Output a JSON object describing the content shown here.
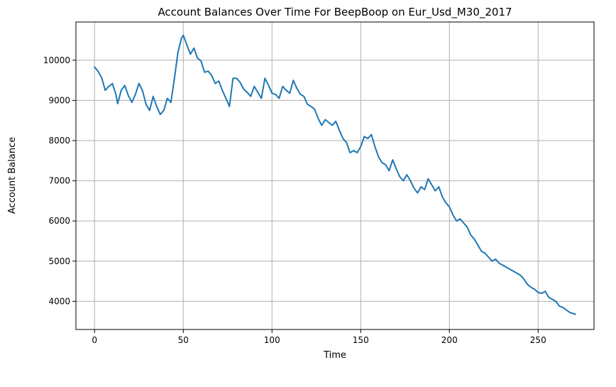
{
  "chart_data": {
    "type": "line",
    "title": "Account Balances Over Time For BeepBoop on Eur_Usd_M30_2017",
    "xlabel": "Time",
    "ylabel": "Account Balance",
    "xlim": [
      -10.5,
      281.5
    ],
    "ylim": [
      3300,
      10950
    ],
    "grid": true,
    "xticks": [
      0,
      50,
      100,
      150,
      200,
      250
    ],
    "yticks": [
      4000,
      5000,
      6000,
      7000,
      8000,
      9000,
      10000
    ],
    "series": [
      {
        "color": "#1f77b4",
        "x": [
          0,
          2,
          4,
          6,
          8,
          10,
          12,
          13,
          15,
          17,
          19,
          21,
          23,
          25,
          27,
          29,
          31,
          33,
          35,
          37,
          39,
          41,
          43,
          45,
          47,
          49,
          50,
          52,
          54,
          56,
          58,
          60,
          62,
          64,
          66,
          68,
          70,
          72,
          74,
          76,
          78,
          80,
          82,
          84,
          86,
          88,
          90,
          92,
          94,
          96,
          98,
          100,
          102,
          104,
          106,
          108,
          110,
          112,
          114,
          116,
          118,
          120,
          122,
          124,
          126,
          128,
          130,
          132,
          134,
          136,
          138,
          140,
          142,
          144,
          146,
          148,
          150,
          152,
          154,
          156,
          158,
          160,
          162,
          164,
          166,
          168,
          170,
          172,
          174,
          176,
          178,
          180,
          182,
          184,
          186,
          188,
          190,
          192,
          194,
          196,
          198,
          200,
          202,
          204,
          206,
          208,
          210,
          212,
          214,
          216,
          218,
          220,
          222,
          224,
          226,
          228,
          230,
          232,
          234,
          236,
          238,
          240,
          242,
          244,
          246,
          248,
          250,
          252,
          254,
          256,
          258,
          260,
          262,
          264,
          266,
          268,
          271
        ],
        "values": [
          9830,
          9720,
          9560,
          9250,
          9350,
          9420,
          9150,
          8920,
          9250,
          9370,
          9120,
          8950,
          9150,
          9420,
          9240,
          8900,
          8750,
          9100,
          8850,
          8650,
          8750,
          9050,
          8950,
          9550,
          10200,
          10550,
          10620,
          10380,
          10150,
          10300,
          10050,
          9980,
          9700,
          9730,
          9620,
          9420,
          9480,
          9250,
          9050,
          8850,
          9550,
          9550,
          9450,
          9280,
          9200,
          9100,
          9350,
          9200,
          9050,
          9550,
          9380,
          9180,
          9150,
          9050,
          9350,
          9250,
          9180,
          9500,
          9300,
          9150,
          9100,
          8900,
          8850,
          8780,
          8550,
          8380,
          8520,
          8450,
          8380,
          8480,
          8250,
          8050,
          7950,
          7700,
          7750,
          7700,
          7850,
          8100,
          8050,
          8150,
          7850,
          7600,
          7450,
          7400,
          7250,
          7520,
          7300,
          7100,
          7000,
          7150,
          7000,
          6820,
          6700,
          6850,
          6780,
          7050,
          6900,
          6750,
          6850,
          6600,
          6450,
          6350,
          6150,
          6000,
          6050,
          5950,
          5850,
          5650,
          5550,
          5400,
          5250,
          5200,
          5100,
          5000,
          5050,
          4950,
          4900,
          4850,
          4800,
          4750,
          4700,
          4650,
          4550,
          4420,
          4350,
          4300,
          4220,
          4200,
          4250,
          4100,
          4050,
          4000,
          3880,
          3850,
          3780,
          3720,
          3680
        ]
      }
    ]
  }
}
